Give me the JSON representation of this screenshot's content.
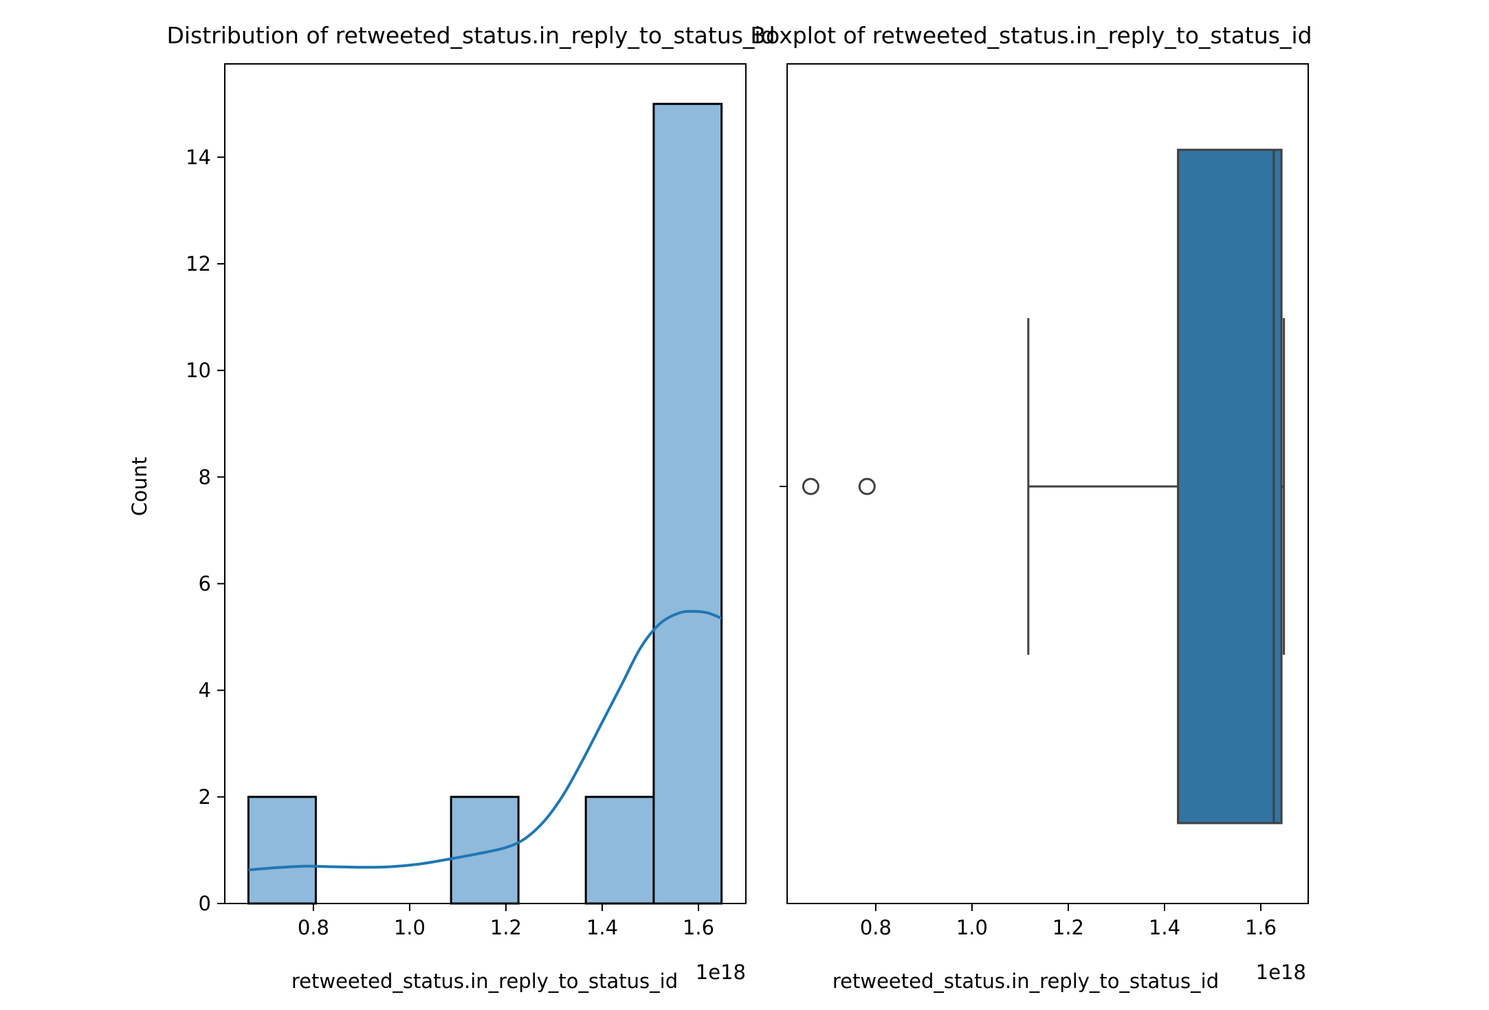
{
  "chart_data": [
    {
      "type": "bar",
      "title": "Distribution of retweeted_status.in_reply_to_status_id",
      "xlabel": "retweeted_status.in_reply_to_status_id",
      "ylabel": "Count",
      "offset_label": "1e18",
      "xlim": [
        0.6159,
        1.6985
      ],
      "ylim": [
        0,
        15.75
      ],
      "x_ticks": [
        0.8,
        1.0,
        1.2,
        1.4,
        1.6
      ],
      "x_tick_labels": [
        "0.8",
        "1.0",
        "1.2",
        "1.4",
        "1.6"
      ],
      "y_ticks": [
        0,
        2,
        4,
        6,
        8,
        10,
        12,
        14
      ],
      "y_tick_labels": [
        "0",
        "2",
        "4",
        "6",
        "8",
        "10",
        "12",
        "14"
      ],
      "bin_edges": [
        0.665,
        0.805,
        0.945,
        1.086,
        1.226,
        1.366,
        1.507,
        1.648
      ],
      "values": [
        2,
        0,
        0,
        2,
        0,
        2,
        15
      ],
      "bar_color": "#8fbadb",
      "kde": {
        "color": "#1f77b4",
        "x": [
          0.665,
          0.72,
          0.78,
          0.84,
          0.9,
          0.96,
          1.02,
          1.08,
          1.14,
          1.2,
          1.24,
          1.28,
          1.32,
          1.36,
          1.4,
          1.44,
          1.48,
          1.52,
          1.56,
          1.59,
          1.62,
          1.648
        ],
        "y": [
          0.63,
          0.67,
          0.7,
          0.69,
          0.68,
          0.69,
          0.74,
          0.83,
          0.93,
          1.05,
          1.22,
          1.55,
          2.05,
          2.7,
          3.4,
          4.1,
          4.8,
          5.25,
          5.45,
          5.48,
          5.45,
          5.35
        ]
      }
    },
    {
      "type": "box",
      "title": "Boxplot of retweeted_status.in_reply_to_status_id",
      "xlabel": "retweeted_status.in_reply_to_status_id",
      "offset_label": "1e18",
      "xlim": [
        0.6159,
        1.6985
      ],
      "x_ticks": [
        0.8,
        1.0,
        1.2,
        1.4,
        1.6
      ],
      "x_tick_labels": [
        "0.8",
        "1.0",
        "1.2",
        "1.4",
        "1.6"
      ],
      "box": {
        "whisker_low": 1.117,
        "q1": 1.428,
        "median": 1.627,
        "q3": 1.643,
        "whisker_high": 1.648,
        "outliers": [
          0.665,
          0.782
        ]
      },
      "box_color": "#3274a1"
    }
  ]
}
